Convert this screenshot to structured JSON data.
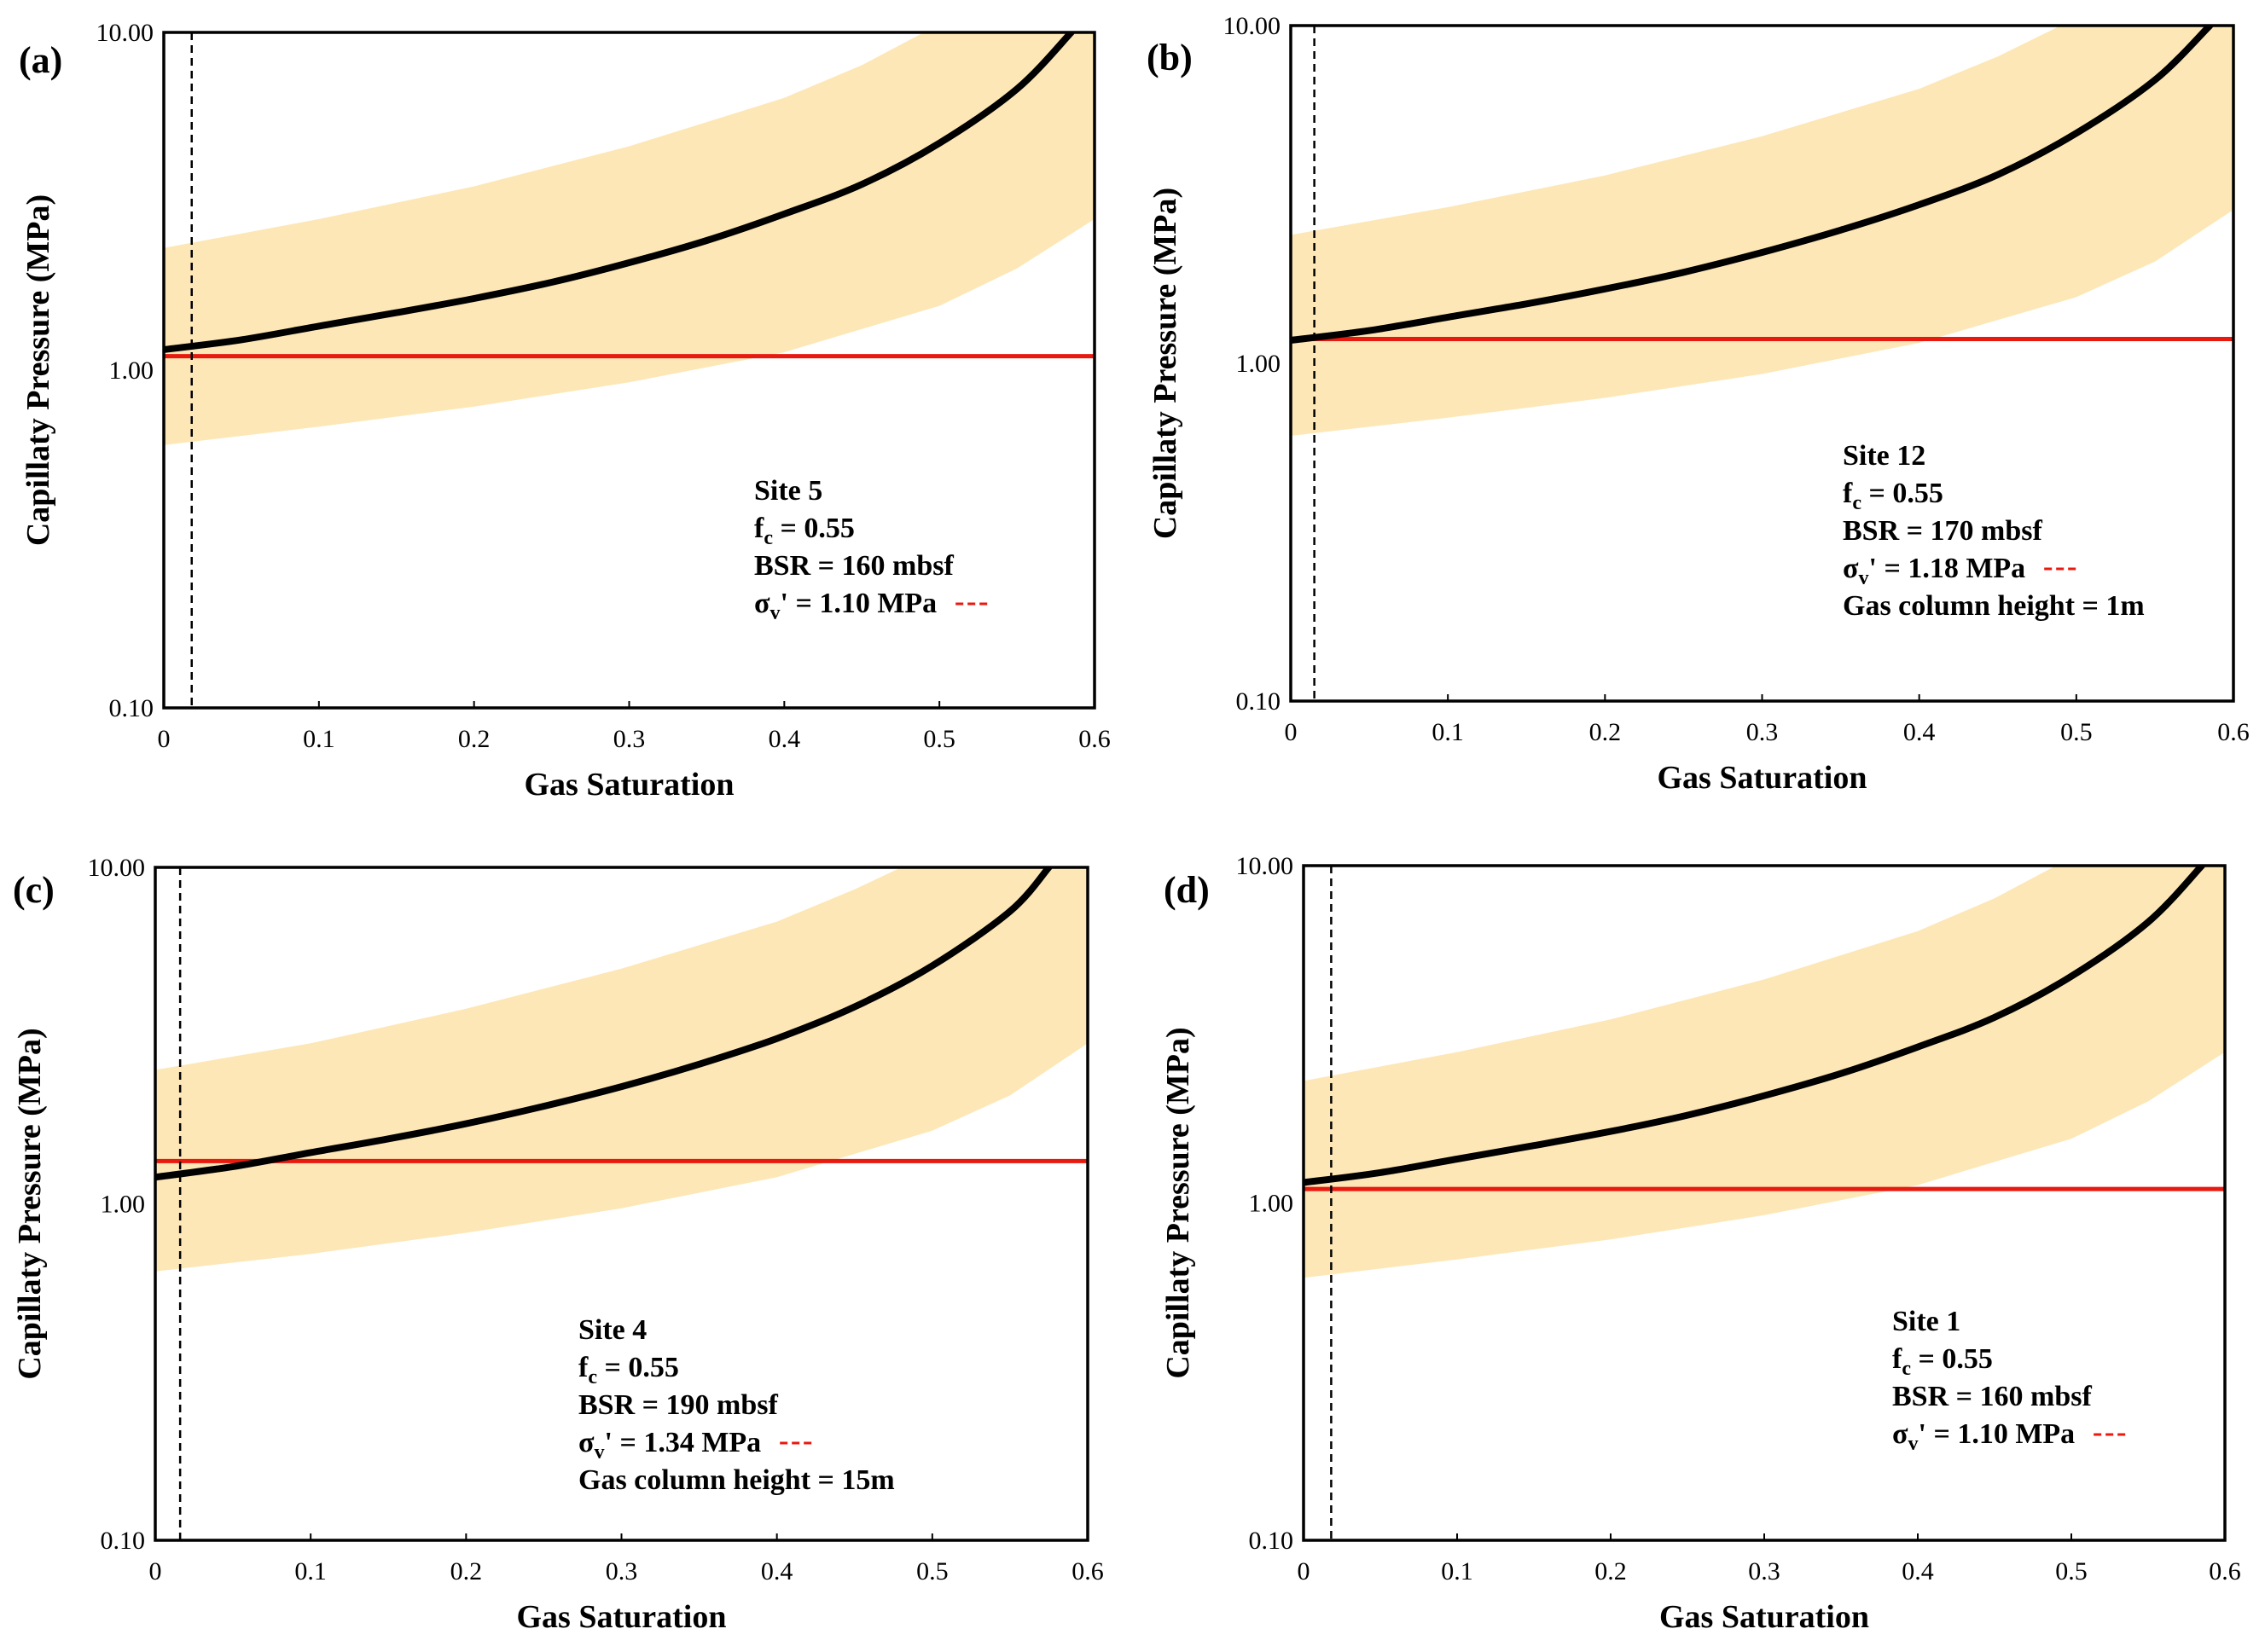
{
  "chart_data": [
    {
      "type": "line",
      "panel_label": "(a)",
      "xlabel": "Gas Saturation",
      "ylabel": "Capillaty Pressure (MPa)",
      "xlim": [
        0,
        0.6
      ],
      "ylim": [
        0.1,
        10
      ],
      "yscale": "log",
      "xticks": [
        "0",
        "0.1",
        "0.2",
        "0.3",
        "0.4",
        "0.5",
        "0.6"
      ],
      "yticks": [
        "0.10",
        "1.00",
        "10.00"
      ],
      "series": [
        {
          "name": "Capillary pressure curve",
          "color": "#000000",
          "x": [
            0,
            0.05,
            0.1,
            0.15,
            0.2,
            0.25,
            0.3,
            0.35,
            0.4,
            0.45,
            0.5,
            0.55,
            0.585
          ],
          "values": [
            1.15,
            1.23,
            1.35,
            1.48,
            1.63,
            1.82,
            2.08,
            2.42,
            2.9,
            3.55,
            4.7,
            6.8,
            10.0
          ]
        },
        {
          "name": "Band upper",
          "color": "#FDE7B6",
          "x": [
            0,
            0.1,
            0.2,
            0.3,
            0.4,
            0.45,
            0.49
          ],
          "values": [
            2.3,
            2.8,
            3.5,
            4.6,
            6.4,
            8.0,
            10.0
          ]
        },
        {
          "name": "Band lower",
          "color": "#FDE7B6",
          "x": [
            0,
            0.1,
            0.2,
            0.3,
            0.4,
            0.5,
            0.55,
            0.6
          ],
          "values": [
            0.6,
            0.68,
            0.78,
            0.92,
            1.13,
            1.55,
            2.0,
            2.8
          ]
        },
        {
          "name": "σv' = 1.10 MPa",
          "color": "#E8190F",
          "x": [
            0,
            0.6
          ],
          "values": [
            1.1,
            1.1
          ]
        }
      ],
      "vline_x": 0.018,
      "annotation": {
        "lines": [
          {
            "main": "Site 5"
          },
          {
            "main": "f",
            "sub": "c",
            "rest": " = 0.55"
          },
          {
            "main": "BSR = 160 mbsf"
          },
          {
            "main": "σ",
            "sub": "v",
            "rest": "' = 1.10 MPa",
            "marker": true
          }
        ]
      }
    },
    {
      "type": "line",
      "panel_label": "(b)",
      "xlabel": "Gas Saturation",
      "ylabel": "Capillaty Pressure (MPa)",
      "xlim": [
        0,
        0.6
      ],
      "ylim": [
        0.1,
        10
      ],
      "yscale": "log",
      "xticks": [
        "0",
        "0.1",
        "0.2",
        "0.3",
        "0.4",
        "0.5",
        "0.6"
      ],
      "yticks": [
        "0.10",
        "1.00",
        "10.00"
      ],
      "series": [
        {
          "name": "Capillary pressure curve",
          "color": "#000000",
          "x": [
            0,
            0.05,
            0.1,
            0.15,
            0.2,
            0.25,
            0.3,
            0.35,
            0.4,
            0.45,
            0.5,
            0.55,
            0.585
          ],
          "values": [
            1.17,
            1.25,
            1.37,
            1.5,
            1.66,
            1.86,
            2.13,
            2.48,
            2.95,
            3.62,
            4.8,
            6.9,
            10.0
          ]
        },
        {
          "name": "Band upper",
          "color": "#FDE7B6",
          "x": [
            0,
            0.1,
            0.2,
            0.3,
            0.4,
            0.45,
            0.49
          ],
          "values": [
            2.4,
            2.9,
            3.6,
            4.7,
            6.5,
            8.1,
            10.0
          ]
        },
        {
          "name": "Band lower",
          "color": "#FDE7B6",
          "x": [
            0,
            0.1,
            0.2,
            0.3,
            0.4,
            0.5,
            0.55,
            0.6
          ],
          "values": [
            0.61,
            0.69,
            0.79,
            0.93,
            1.15,
            1.57,
            2.0,
            2.85
          ]
        },
        {
          "name": "σv' = 1.18 MPa",
          "color": "#E8190F",
          "x": [
            0,
            0.6
          ],
          "values": [
            1.18,
            1.18
          ]
        }
      ],
      "vline_x": 0.015,
      "annotation": {
        "lines": [
          {
            "main": "Site 12"
          },
          {
            "main": "f",
            "sub": "c",
            "rest": " = 0.55"
          },
          {
            "main": "BSR = 170 mbsf"
          },
          {
            "main": "σ",
            "sub": "v",
            "rest": "' = 1.18 MPa",
            "marker": true
          },
          {
            "main": "Gas column height = 1m"
          }
        ]
      }
    },
    {
      "type": "line",
      "panel_label": "(c)",
      "xlabel": "Gas Saturation",
      "ylabel": "Capillaty Pressure (MPa)",
      "xlim": [
        0,
        0.6
      ],
      "ylim": [
        0.1,
        10
      ],
      "yscale": "log",
      "xticks": [
        "0",
        "0.1",
        "0.2",
        "0.3",
        "0.4",
        "0.5",
        "0.6"
      ],
      "yticks": [
        "0.10",
        "1.00",
        "10.00"
      ],
      "series": [
        {
          "name": "Capillary pressure curve",
          "color": "#000000",
          "x": [
            0,
            0.05,
            0.1,
            0.15,
            0.2,
            0.25,
            0.3,
            0.35,
            0.4,
            0.45,
            0.5,
            0.55,
            0.575
          ],
          "values": [
            1.2,
            1.29,
            1.42,
            1.56,
            1.73,
            1.95,
            2.23,
            2.6,
            3.1,
            3.85,
            5.1,
            7.4,
            10.0
          ]
        },
        {
          "name": "Band upper",
          "color": "#FDE7B6",
          "x": [
            0,
            0.1,
            0.2,
            0.3,
            0.4,
            0.45,
            0.48
          ],
          "values": [
            2.5,
            3.0,
            3.8,
            5.0,
            6.9,
            8.6,
            10.0
          ]
        },
        {
          "name": "Band lower",
          "color": "#FDE7B6",
          "x": [
            0,
            0.1,
            0.2,
            0.3,
            0.4,
            0.5,
            0.55,
            0.6
          ],
          "values": [
            0.63,
            0.71,
            0.82,
            0.97,
            1.2,
            1.65,
            2.1,
            3.0
          ]
        },
        {
          "name": "σv' = 1.34 MPa",
          "color": "#E8190F",
          "x": [
            0,
            0.6
          ],
          "values": [
            1.34,
            1.34
          ]
        }
      ],
      "vline_x": 0.016,
      "annotation": {
        "lines": [
          {
            "main": "Site 4"
          },
          {
            "main": "f",
            "sub": "c",
            "rest": " = 0.55"
          },
          {
            "main": "BSR = 190 mbsf"
          },
          {
            "main": "σ",
            "sub": "v",
            "rest": "' = 1.34 MPa",
            "marker": true
          },
          {
            "main": "Gas column height = 15m"
          }
        ]
      }
    },
    {
      "type": "line",
      "panel_label": "(d)",
      "xlabel": "Gas Saturation",
      "ylabel": "Capillaty Pressure (MPa)",
      "xlim": [
        0,
        0.6
      ],
      "ylim": [
        0.1,
        10
      ],
      "yscale": "log",
      "xticks": [
        "0",
        "0.1",
        "0.2",
        "0.3",
        "0.4",
        "0.5",
        "0.6"
      ],
      "yticks": [
        "0.10",
        "1.00",
        "10.00"
      ],
      "series": [
        {
          "name": "Capillary pressure curve",
          "color": "#000000",
          "x": [
            0,
            0.05,
            0.1,
            0.15,
            0.2,
            0.25,
            0.3,
            0.35,
            0.4,
            0.45,
            0.5,
            0.55,
            0.585
          ],
          "values": [
            1.15,
            1.23,
            1.35,
            1.48,
            1.63,
            1.82,
            2.08,
            2.42,
            2.9,
            3.55,
            4.7,
            6.8,
            10.0
          ]
        },
        {
          "name": "Band upper",
          "color": "#FDE7B6",
          "x": [
            0,
            0.1,
            0.2,
            0.3,
            0.4,
            0.45,
            0.49
          ],
          "values": [
            2.3,
            2.8,
            3.5,
            4.6,
            6.4,
            8.0,
            10.0
          ]
        },
        {
          "name": "Band lower",
          "color": "#FDE7B6",
          "x": [
            0,
            0.1,
            0.2,
            0.3,
            0.4,
            0.5,
            0.55,
            0.6
          ],
          "values": [
            0.6,
            0.68,
            0.78,
            0.92,
            1.13,
            1.55,
            2.0,
            2.8
          ]
        },
        {
          "name": "σv' = 1.10 MPa",
          "color": "#E8190F",
          "x": [
            0,
            0.6
          ],
          "values": [
            1.1,
            1.1
          ]
        }
      ],
      "vline_x": 0.018,
      "annotation": {
        "lines": [
          {
            "main": "Site 1"
          },
          {
            "main": "f",
            "sub": "c",
            "rest": " = 0.55"
          },
          {
            "main": "BSR = 160 mbsf"
          },
          {
            "main": "σ",
            "sub": "v",
            "rest": "' = 1.10 MPa",
            "marker": true
          }
        ]
      }
    }
  ]
}
